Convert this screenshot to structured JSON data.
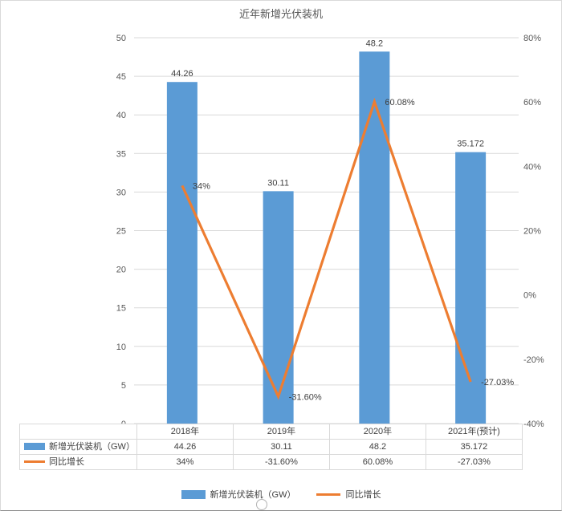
{
  "title": "近年新增光伏装机",
  "colors": {
    "bar": "#5B9BD5",
    "line": "#ED7D31",
    "grid": "#d9d9d9",
    "axis_text": "#595959",
    "label_text": "#404040"
  },
  "chart_data": {
    "type": "bar+line combo",
    "title": "近年新增光伏装机",
    "categories": [
      "2018年",
      "2019年",
      "2020年",
      "2021年(预计)"
    ],
    "series": [
      {
        "name": "新增光伏装机（GW）",
        "type": "bar",
        "axis": "left",
        "color": "#5B9BD5",
        "values": [
          44.26,
          30.11,
          48.2,
          35.172
        ],
        "labels": [
          "44.26",
          "30.11",
          "48.2",
          "35.172"
        ]
      },
      {
        "name": "同比增长",
        "type": "line",
        "axis": "right",
        "color": "#ED7D31",
        "values": [
          34,
          -31.6,
          60.08,
          -27.03
        ],
        "labels": [
          "34%",
          "-31.60%",
          "60.08%",
          "-27.03%"
        ]
      }
    ],
    "left_axis": {
      "min": 0,
      "max": 50,
      "step": 5,
      "tick_labels": [
        "0",
        "5",
        "10",
        "15",
        "20",
        "25",
        "30",
        "35",
        "40",
        "45",
        "50"
      ]
    },
    "right_axis": {
      "min": -40,
      "max": 80,
      "step": 20,
      "tick_labels": [
        "-40%",
        "-20%",
        "0%",
        "20%",
        "40%",
        "60%",
        "80%"
      ]
    },
    "grid": true,
    "legend_position": "bottom",
    "data_table_shown": true
  }
}
